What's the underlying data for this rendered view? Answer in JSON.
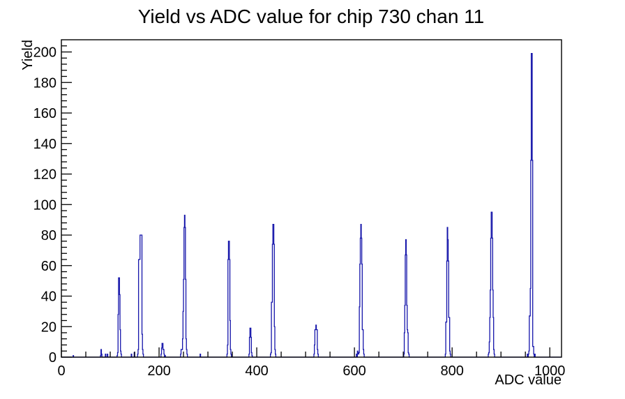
{
  "title": "Yield vs ADC value for chip 730 chan 11",
  "chart_data": {
    "type": "bar",
    "subtype": "step-histogram",
    "title": "Yield vs ADC value for chip 730 chan 11",
    "xlabel": "ADC value",
    "ylabel": "Yield",
    "xlim": [
      0,
      1024
    ],
    "ylim": [
      0,
      208
    ],
    "grid": false,
    "legend": "none",
    "x_tick_labels": [
      "0",
      "200",
      "400",
      "600",
      "800",
      "1000"
    ],
    "x_major_tick_values": [
      0,
      200,
      400,
      600,
      800,
      1000
    ],
    "x_minor_tick_step": 50,
    "y_tick_labels": [
      "0",
      "20",
      "40",
      "60",
      "80",
      "100",
      "120",
      "140",
      "160",
      "180",
      "200"
    ],
    "y_major_tick_values": [
      0,
      20,
      40,
      60,
      80,
      100,
      120,
      140,
      160,
      180,
      200
    ],
    "y_minor_tick_step": 4,
    "line_color": "#1414aa",
    "frame_color": "#000000",
    "background_color": "#ffffff",
    "bins_sparse": [
      [
        24,
        1
      ],
      [
        80,
        1
      ],
      [
        81,
        5
      ],
      [
        82,
        2
      ],
      [
        90,
        2
      ],
      [
        94,
        2
      ],
      [
        114,
        1
      ],
      [
        115,
        3
      ],
      [
        116,
        28
      ],
      [
        117,
        52
      ],
      [
        118,
        52
      ],
      [
        119,
        41
      ],
      [
        120,
        18
      ],
      [
        121,
        4
      ],
      [
        122,
        2
      ],
      [
        143,
        2
      ],
      [
        149,
        3
      ],
      [
        156,
        2
      ],
      [
        157,
        5
      ],
      [
        158,
        64
      ],
      [
        159,
        64
      ],
      [
        160,
        64
      ],
      [
        161,
        80
      ],
      [
        162,
        80
      ],
      [
        163,
        80
      ],
      [
        164,
        80
      ],
      [
        165,
        15
      ],
      [
        166,
        5
      ],
      [
        167,
        2
      ],
      [
        204,
        2
      ],
      [
        205,
        6
      ],
      [
        206,
        9
      ],
      [
        207,
        9
      ],
      [
        208,
        5
      ],
      [
        209,
        5
      ],
      [
        210,
        2
      ],
      [
        212,
        1
      ],
      [
        244,
        2
      ],
      [
        245,
        5
      ],
      [
        246,
        5
      ],
      [
        247,
        5
      ],
      [
        248,
        12
      ],
      [
        249,
        30
      ],
      [
        250,
        51
      ],
      [
        251,
        85
      ],
      [
        252,
        93
      ],
      [
        253,
        85
      ],
      [
        254,
        51
      ],
      [
        255,
        12
      ],
      [
        256,
        5
      ],
      [
        257,
        2
      ],
      [
        284,
        2
      ],
      [
        339,
        2
      ],
      [
        340,
        8
      ],
      [
        341,
        64
      ],
      [
        342,
        76
      ],
      [
        343,
        76
      ],
      [
        344,
        64
      ],
      [
        345,
        24
      ],
      [
        346,
        5
      ],
      [
        347,
        2
      ],
      [
        384,
        2
      ],
      [
        385,
        13
      ],
      [
        386,
        19
      ],
      [
        387,
        19
      ],
      [
        388,
        13
      ],
      [
        389,
        3
      ],
      [
        390,
        1
      ],
      [
        428,
        2
      ],
      [
        429,
        3
      ],
      [
        430,
        36
      ],
      [
        431,
        36
      ],
      [
        432,
        74
      ],
      [
        433,
        87
      ],
      [
        434,
        87
      ],
      [
        435,
        74
      ],
      [
        436,
        20
      ],
      [
        437,
        5
      ],
      [
        438,
        2
      ],
      [
        517,
        2
      ],
      [
        518,
        8
      ],
      [
        519,
        18
      ],
      [
        520,
        18
      ],
      [
        521,
        21
      ],
      [
        522,
        18
      ],
      [
        523,
        18
      ],
      [
        524,
        5
      ],
      [
        525,
        2
      ],
      [
        604,
        2
      ],
      [
        606,
        4
      ],
      [
        607,
        3
      ],
      [
        608,
        2
      ],
      [
        609,
        3
      ],
      [
        610,
        33
      ],
      [
        611,
        61
      ],
      [
        612,
        78
      ],
      [
        613,
        87
      ],
      [
        614,
        78
      ],
      [
        615,
        61
      ],
      [
        616,
        18
      ],
      [
        617,
        18
      ],
      [
        618,
        5
      ],
      [
        619,
        2
      ],
      [
        701,
        2
      ],
      [
        702,
        16
      ],
      [
        703,
        34
      ],
      [
        704,
        67
      ],
      [
        705,
        77
      ],
      [
        706,
        67
      ],
      [
        707,
        34
      ],
      [
        708,
        18
      ],
      [
        709,
        16
      ],
      [
        710,
        3
      ],
      [
        711,
        2
      ],
      [
        786,
        2
      ],
      [
        787,
        23
      ],
      [
        788,
        23
      ],
      [
        789,
        63
      ],
      [
        790,
        85
      ],
      [
        791,
        77
      ],
      [
        792,
        63
      ],
      [
        793,
        26
      ],
      [
        794,
        26
      ],
      [
        795,
        4
      ],
      [
        796,
        2
      ],
      [
        874,
        2
      ],
      [
        875,
        3
      ],
      [
        876,
        10
      ],
      [
        877,
        26
      ],
      [
        878,
        44
      ],
      [
        879,
        78
      ],
      [
        880,
        95
      ],
      [
        881,
        95
      ],
      [
        882,
        78
      ],
      [
        883,
        44
      ],
      [
        884,
        26
      ],
      [
        885,
        5
      ],
      [
        886,
        2
      ],
      [
        954,
        2
      ],
      [
        956,
        2
      ],
      [
        957,
        4
      ],
      [
        958,
        27
      ],
      [
        959,
        27
      ],
      [
        960,
        45
      ],
      [
        961,
        129
      ],
      [
        962,
        199
      ],
      [
        963,
        199
      ],
      [
        964,
        129
      ],
      [
        965,
        7
      ],
      [
        966,
        7
      ],
      [
        967,
        2
      ],
      [
        969,
        2
      ]
    ]
  }
}
